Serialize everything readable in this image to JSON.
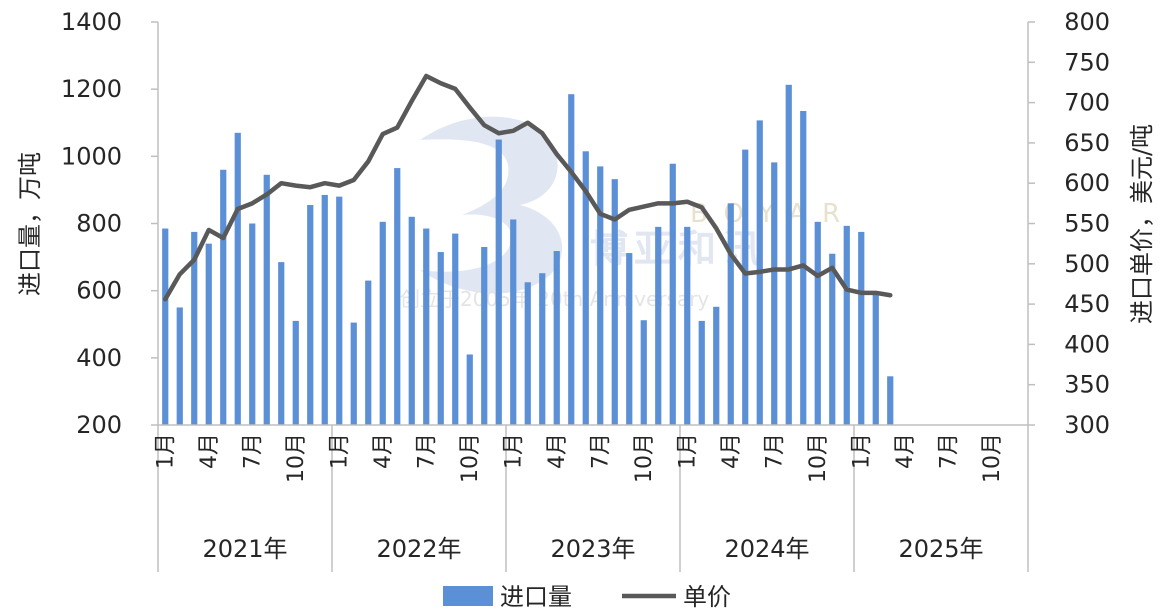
{
  "chart_data": {
    "type": "bar+line",
    "years": [
      "2021年",
      "2022年",
      "2023年",
      "2024年",
      "2025年"
    ],
    "month_tick_labels": [
      "1月",
      "4月",
      "7月",
      "10月"
    ],
    "left_axis": {
      "label": "进口量，万吨",
      "ylim": [
        200,
        1400
      ],
      "ticks": [
        200,
        400,
        600,
        800,
        1000,
        1200,
        1400
      ]
    },
    "right_axis": {
      "label": "进口单价，美元/吨",
      "ylim": [
        300,
        800
      ],
      "ticks": [
        300,
        350,
        400,
        450,
        500,
        550,
        600,
        650,
        700,
        750,
        800
      ]
    },
    "series": [
      {
        "name": "进口量",
        "kind": "bar",
        "axis": "left",
        "color": "#5b8fd6",
        "values": [
          785,
          550,
          775,
          740,
          960,
          1070,
          800,
          945,
          685,
          510,
          855,
          885,
          880,
          505,
          630,
          805,
          965,
          820,
          785,
          715,
          770,
          410,
          730,
          1050,
          812,
          625,
          652,
          718,
          1185,
          1015,
          970,
          932,
          712,
          512,
          790,
          978,
          790,
          510,
          552,
          860,
          1020,
          1107,
          982,
          1213,
          1135,
          805,
          710,
          793,
          775,
          595,
          345
        ]
      },
      {
        "name": "单价",
        "kind": "line",
        "axis": "right",
        "color": "#595959",
        "values": [
          456,
          487,
          505,
          542,
          532,
          568,
          575,
          586,
          600,
          597,
          595,
          600,
          597,
          604,
          627,
          661,
          669,
          702,
          733,
          724,
          717,
          694,
          672,
          662,
          665,
          675,
          662,
          636,
          614,
          590,
          562,
          555,
          567,
          571,
          575,
          575,
          577,
          570,
          544,
          512,
          488,
          490,
          493,
          493,
          498,
          485,
          495,
          468,
          464,
          464,
          461
        ]
      }
    ],
    "legend": {
      "position": "bottom"
    }
  },
  "watermark": {
    "text_letters": "BOYAR",
    "text_cn": "博亚和讯",
    "text_sub": "创立于2005年 20th Anniversary"
  }
}
